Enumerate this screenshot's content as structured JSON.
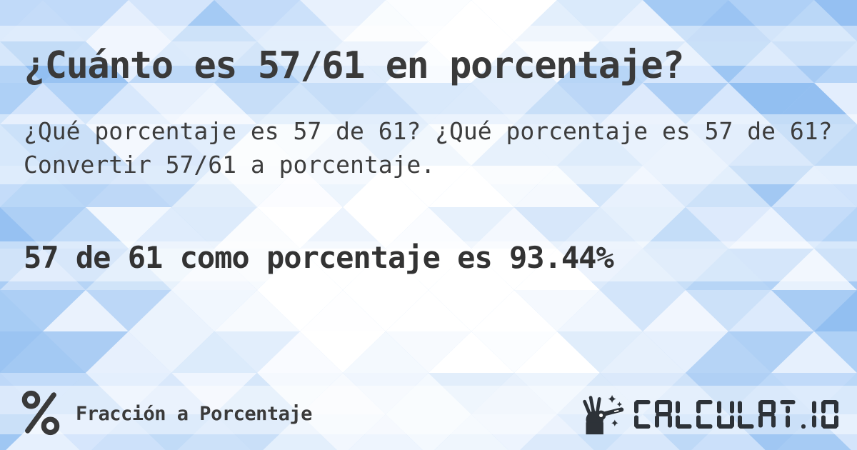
{
  "page": {
    "title": "¿Cuánto es 57/61 en porcentaje?",
    "description_lines": [
      "¿Qué porcentaje es 57 de 61? ¿Qué porcentaje es 57 de 61?",
      "Convertir 57/61 a porcentaje."
    ],
    "result": "57 de 61 como porcentaje es 93.44%"
  },
  "footer": {
    "category": {
      "icon": "percent-icon",
      "label": "Fracción a Porcentaje"
    },
    "brand": {
      "icon": "magic-wand-hand-icon",
      "name": "CALCULAT.IO"
    }
  },
  "colors": {
    "background_base": "#b7d4f7",
    "mosaic_palette": [
      "#8fbdf1",
      "#9cc5f3",
      "#aed0f6",
      "#bcd7f8",
      "#cfe2fb",
      "#e3eefd"
    ],
    "band": "rgba(255,255,255,0.45)",
    "text": "#3a3a3a",
    "logo": "#2d3238"
  }
}
